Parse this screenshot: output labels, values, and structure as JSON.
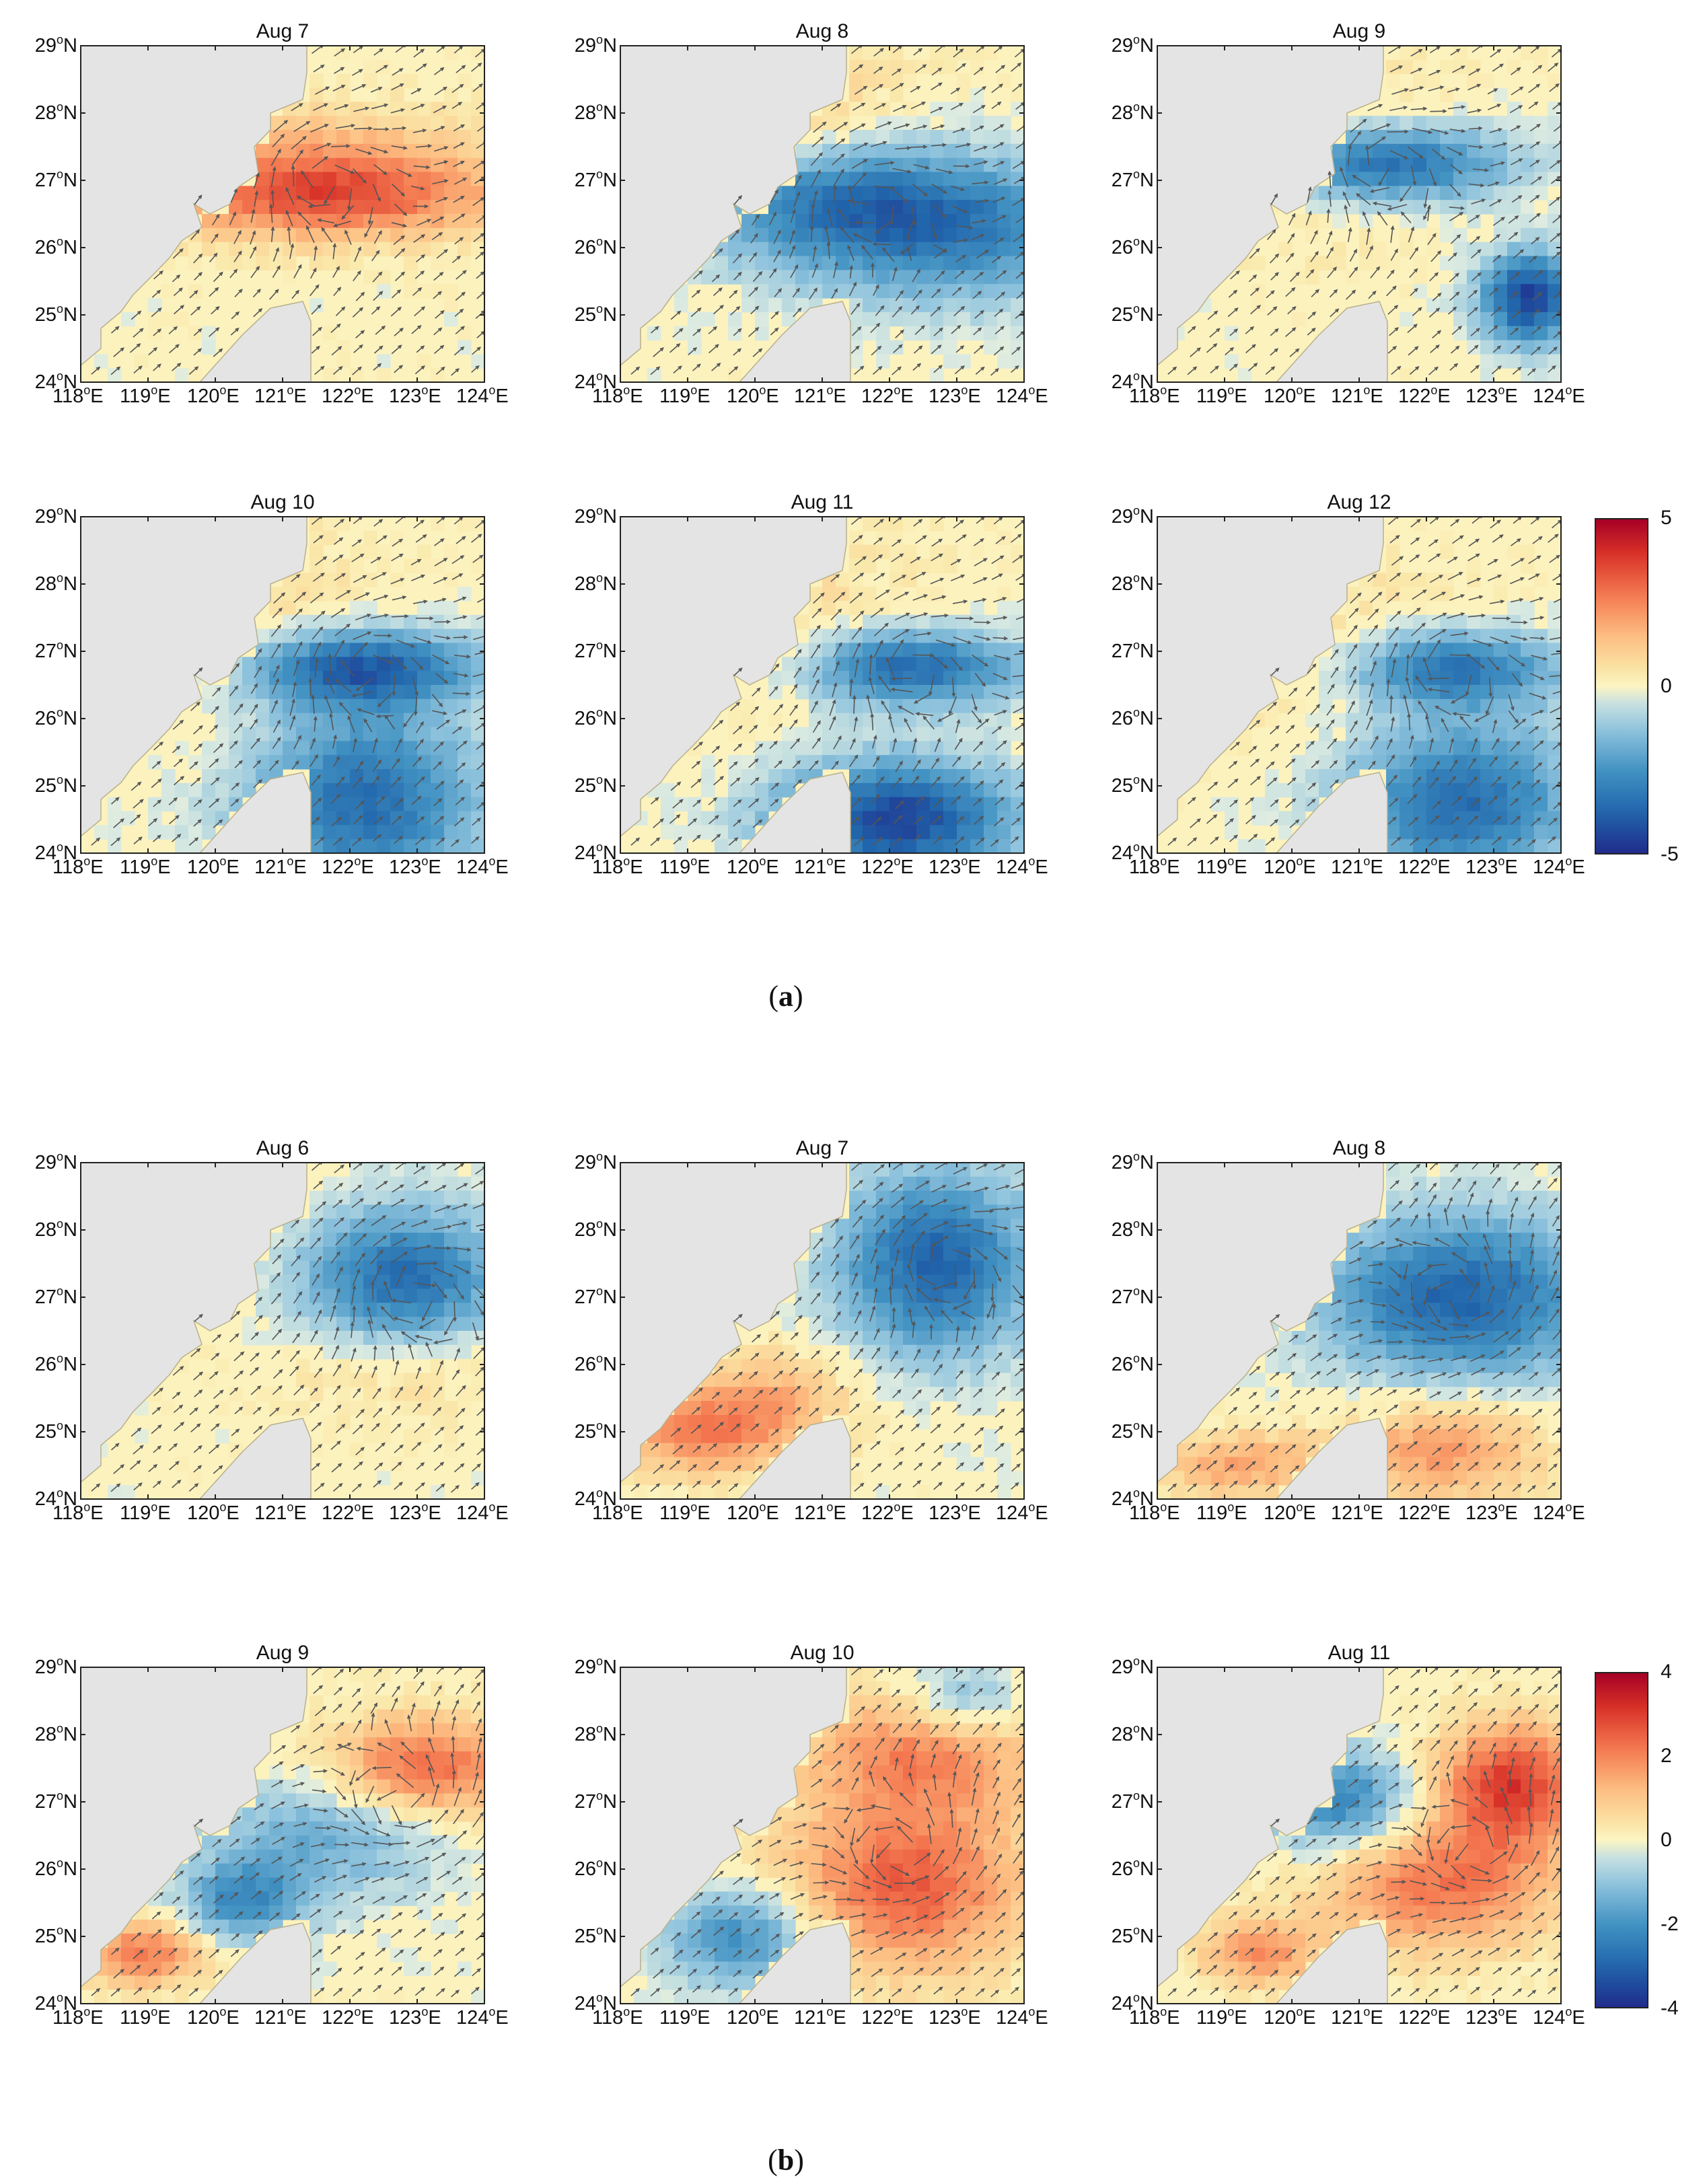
{
  "lat_labels": [
    "29",
    "28",
    "27",
    "26",
    "25",
    "24"
  ],
  "lon_labels": [
    "118",
    "119",
    "120",
    "121",
    "122",
    "123",
    "124"
  ],
  "lat_suffix": "N",
  "lon_suffix": "E",
  "deg": "o",
  "groups": [
    {
      "caption_open": "(",
      "caption_letter": "a",
      "caption_close": ")",
      "colorbar": {
        "ticks": [
          "5",
          "0",
          "-5"
        ],
        "range": [
          -5,
          5
        ]
      },
      "panels": [
        {
          "title": "Aug  7",
          "anom": [
            [
              0.62,
              0.46,
              2.5,
              0.4,
              0.12
            ],
            [
              0.55,
              0.35,
              1.8,
              0.5,
              0.16
            ]
          ],
          "vortex": [
            0.6,
            0.4,
            1
          ]
        },
        {
          "title": "Aug  8",
          "anom": [
            [
              0.58,
              0.46,
              -3.0,
              0.45,
              0.18
            ],
            [
              0.25,
              0.18,
              1.5,
              0.4,
              0.22
            ],
            [
              0.82,
              0.6,
              -2.0,
              0.4,
              0.2
            ]
          ],
          "vortex": [
            0.62,
            0.46,
            1
          ]
        },
        {
          "title": "Aug  9",
          "anom": [
            [
              0.55,
              0.35,
              -4.0,
              0.32,
              0.12
            ],
            [
              0.92,
              0.75,
              -4.5,
              0.12,
              0.14
            ],
            [
              0.3,
              0.3,
              1.2,
              0.4,
              0.25
            ]
          ],
          "vortex": [
            0.55,
            0.35,
            1
          ]
        },
        {
          "title": "Aug 10",
          "anom": [
            [
              0.68,
              0.45,
              -4.0,
              0.3,
              0.12
            ],
            [
              0.7,
              0.85,
              -3.5,
              0.3,
              0.28
            ],
            [
              0.3,
              0.3,
              1.0,
              0.4,
              0.3
            ]
          ],
          "vortex": [
            0.7,
            0.45,
            1
          ]
        },
        {
          "title": "Aug  11",
          "anom": [
            [
              0.72,
              0.45,
              -3.8,
              0.28,
              0.12
            ],
            [
              0.68,
              0.9,
              -4.5,
              0.3,
              0.18
            ],
            [
              0.35,
              0.3,
              0.8,
              0.4,
              0.3
            ]
          ],
          "vortex": [
            0.72,
            0.45,
            1
          ]
        },
        {
          "title": "Aug  12",
          "anom": [
            [
              0.72,
              0.45,
              -3.5,
              0.28,
              0.12
            ],
            [
              0.75,
              0.85,
              -3.5,
              0.3,
              0.25
            ],
            [
              0.4,
              0.4,
              0.9,
              0.4,
              0.25
            ]
          ],
          "vortex": [
            0.72,
            0.45,
            1
          ]
        }
      ]
    },
    {
      "caption_open": "(",
      "caption_letter": "b",
      "caption_close": ")",
      "colorbar": {
        "ticks": [
          "4",
          "2",
          "0",
          "-2",
          "-4"
        ],
        "range": [
          -4,
          4
        ]
      },
      "panels": [
        {
          "title": "Aug 6",
          "anom": [
            [
              0.8,
              0.35,
              -2.8,
              0.25,
              0.22
            ],
            [
              0.8,
              0.6,
              0.8,
              0.3,
              0.15
            ]
          ],
          "vortex": [
            0.82,
            0.38,
            1
          ]
        },
        {
          "title": "Aug 7",
          "anom": [
            [
              0.78,
              0.3,
              -3.0,
              0.25,
              0.28
            ],
            [
              0.2,
              0.8,
              2.0,
              0.2,
              0.12
            ],
            [
              0.4,
              0.7,
              1.2,
              0.2,
              0.15
            ]
          ],
          "vortex": [
            0.8,
            0.3,
            1
          ]
        },
        {
          "title": "Aug 8",
          "anom": [
            [
              0.75,
              0.4,
              -3.0,
              0.35,
              0.25
            ],
            [
              0.7,
              0.85,
              1.8,
              0.25,
              0.15
            ],
            [
              0.2,
              0.9,
              1.5,
              0.2,
              0.1
            ]
          ],
          "vortex": [
            0.75,
            0.4,
            -1
          ]
        },
        {
          "title": "Aug 9",
          "anom": [
            [
              0.85,
              0.3,
              2.5,
              0.25,
              0.15
            ],
            [
              0.15,
              0.85,
              2.2,
              0.15,
              0.1
            ],
            [
              0.6,
              0.5,
              -1.5,
              0.3,
              0.2
            ],
            [
              0.4,
              0.7,
              -2.0,
              0.15,
              0.12
            ]
          ],
          "vortex": [
            0.8,
            0.4,
            -1
          ]
        },
        {
          "title": "Aug 10",
          "anom": [
            [
              0.7,
              0.65,
              2.6,
              0.3,
              0.25
            ],
            [
              0.75,
              0.25,
              2.0,
              0.3,
              0.18
            ],
            [
              0.3,
              0.8,
              -2.2,
              0.2,
              0.15
            ],
            [
              0.85,
              0.1,
              -1.5,
              0.15,
              0.12
            ]
          ],
          "vortex": [
            0.7,
            0.55,
            -1
          ]
        },
        {
          "title": "Aug 11",
          "anom": [
            [
              0.88,
              0.35,
              3.0,
              0.2,
              0.18
            ],
            [
              0.7,
              0.65,
              2.2,
              0.3,
              0.2
            ],
            [
              0.45,
              0.4,
              -2.5,
              0.2,
              0.15
            ],
            [
              0.25,
              0.85,
              1.8,
              0.15,
              0.1
            ]
          ],
          "vortex": [
            0.8,
            0.55,
            -1
          ]
        }
      ]
    }
  ]
}
